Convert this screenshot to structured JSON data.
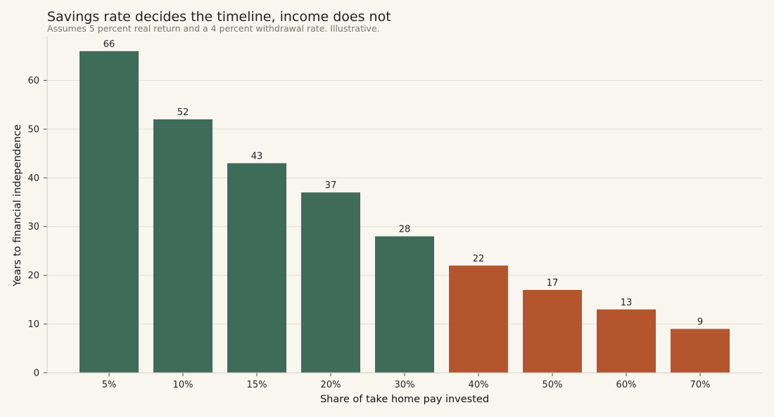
{
  "chart_data": {
    "type": "bar",
    "title": "Savings rate decides the timeline, income does not",
    "subtitle": "Assumes 5 percent real return and a 4 percent withdrawal rate. Illustrative.",
    "xlabel": "Share of take home pay invested",
    "ylabel": "Years to financial independence",
    "categories": [
      "5%",
      "10%",
      "15%",
      "20%",
      "30%",
      "40%",
      "50%",
      "60%",
      "70%"
    ],
    "values": [
      66,
      52,
      43,
      37,
      28,
      22,
      17,
      13,
      9
    ],
    "ylim": [
      0,
      69
    ],
    "yticks": [
      0,
      10,
      20,
      30,
      40,
      50,
      60
    ],
    "grid": true,
    "legend": "none",
    "colors": {
      "below_40": "#3f6b5b",
      "from_40": "#b5552e",
      "grid": "#e0ddd5",
      "axis": "#cfcbc3",
      "background": "#f9f6f0"
    }
  }
}
